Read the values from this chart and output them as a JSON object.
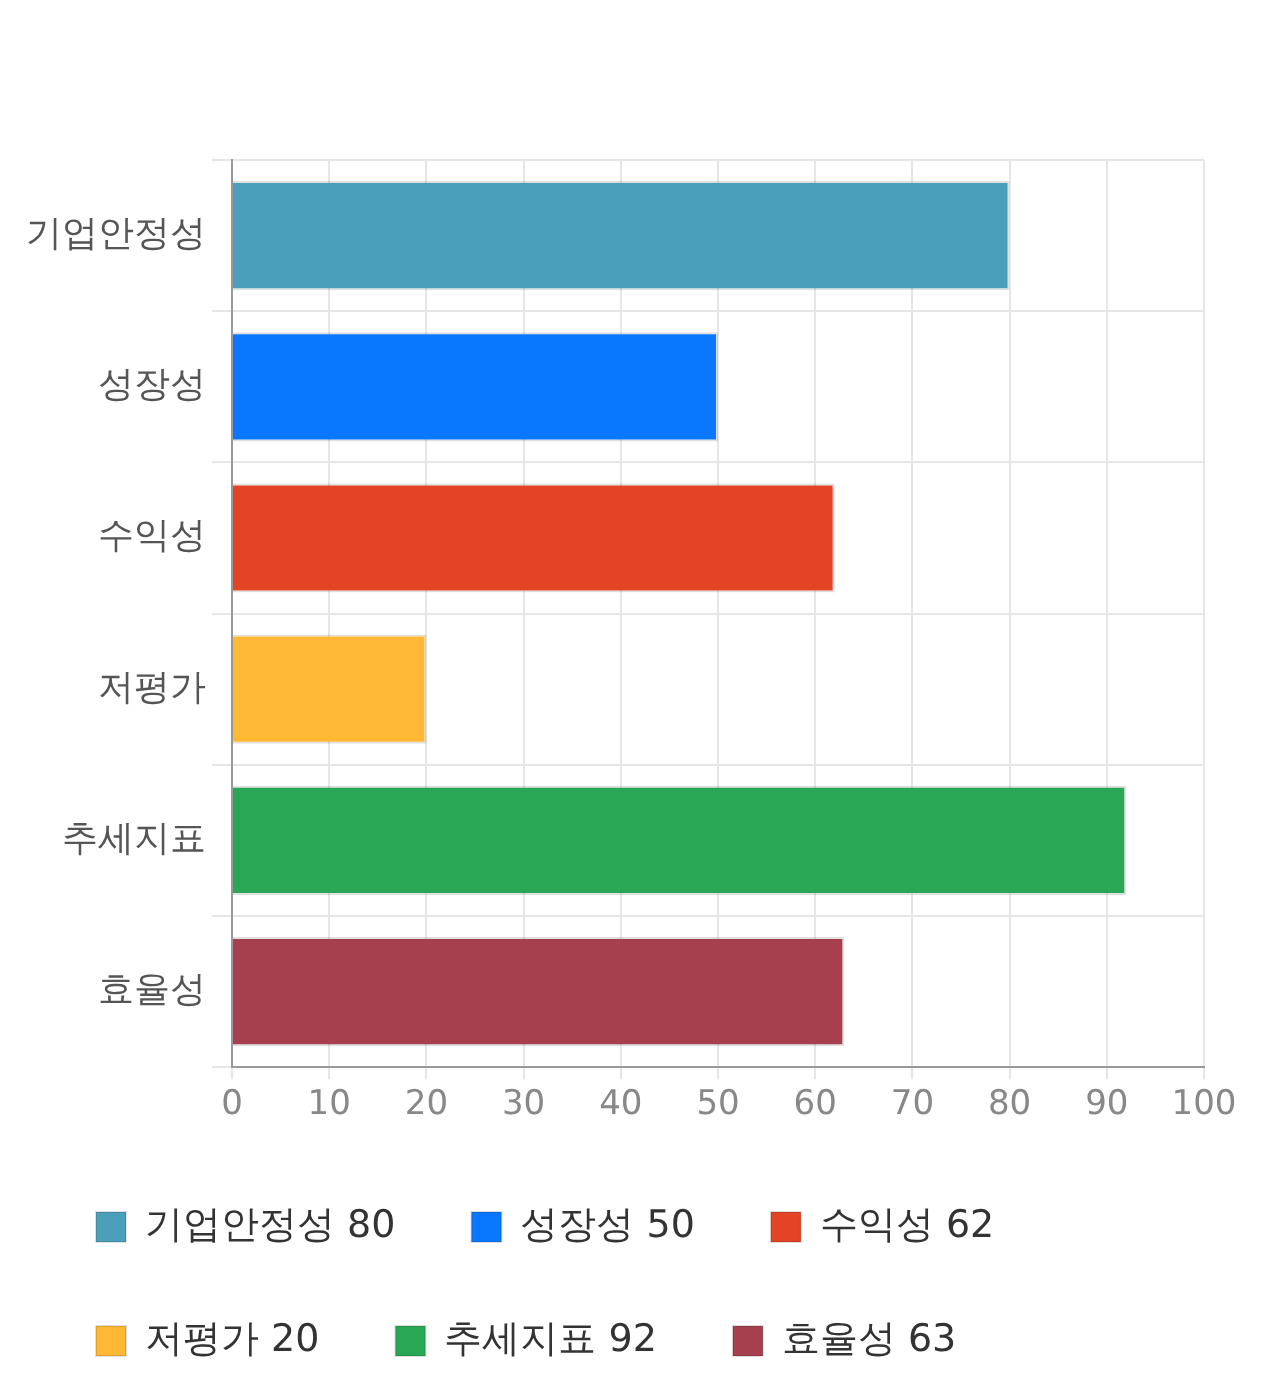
{
  "chart_data": {
    "type": "bar",
    "orientation": "horizontal",
    "categories": [
      "기업안정성",
      "성장성",
      "수익성",
      "저평가",
      "추세지표",
      "효율성"
    ],
    "series": [
      {
        "name": "기업안정성 80",
        "color": "#4aa0ba",
        "values": [
          80,
          null,
          null,
          null,
          null,
          null
        ]
      },
      {
        "name": "성장성 50",
        "color": "#0a78fe",
        "values": [
          null,
          50,
          null,
          null,
          null,
          null
        ]
      },
      {
        "name": "수익성 62",
        "color": "#e24424",
        "values": [
          null,
          null,
          62,
          null,
          null,
          null
        ]
      },
      {
        "name": "저평가 20",
        "color": "#ffb833",
        "values": [
          null,
          null,
          null,
          20,
          null,
          null
        ]
      },
      {
        "name": "추세지표 92",
        "color": "#29a755",
        "values": [
          null,
          null,
          null,
          null,
          92,
          null
        ]
      },
      {
        "name": "효율성 63",
        "color": "#a7404e",
        "values": [
          null,
          null,
          null,
          null,
          null,
          63
        ]
      }
    ],
    "xlim": [
      0,
      100
    ],
    "xticks": [
      0,
      10,
      20,
      30,
      40,
      50,
      60,
      70,
      80,
      90,
      100
    ],
    "grid": true,
    "legend": "bottom"
  }
}
